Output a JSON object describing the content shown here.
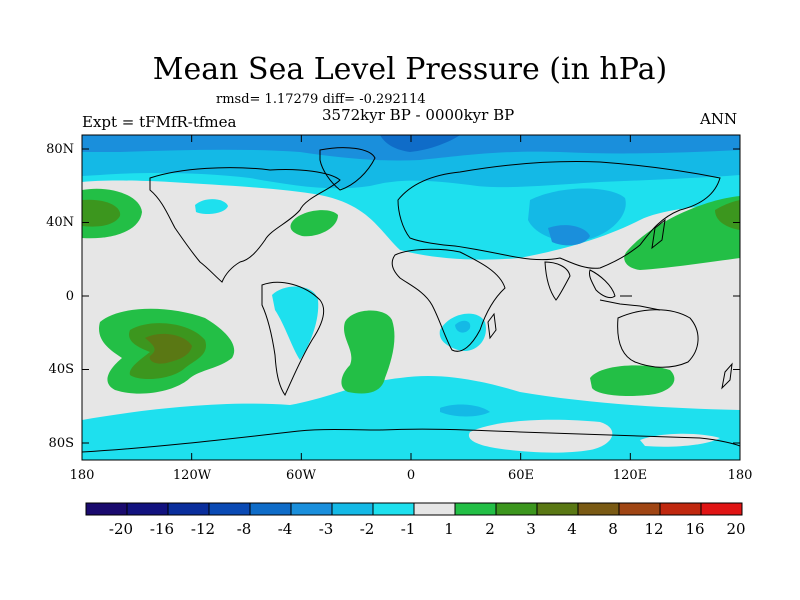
{
  "title": "Mean Sea Level Pressure (in hPa)",
  "stats_line": "rmsd= 1.17279  diff= -0.292114",
  "period": "3572kyr BP - 0000kyr BP",
  "experiment": "Expt = tFMfR-tfmea",
  "season": "ANN",
  "lat_labels": [
    "80N",
    "40N",
    "0",
    "40S",
    "80S"
  ],
  "lon_labels": [
    "180",
    "120W",
    "60W",
    "0",
    "60E",
    "120E",
    "180"
  ],
  "colorbar": {
    "levels": [
      "-20",
      "-16",
      "-12",
      "-8",
      "-4",
      "-3",
      "-2",
      "-1",
      "1",
      "2",
      "3",
      "4",
      "8",
      "12",
      "16",
      "20"
    ],
    "colors": [
      "#1a0a6e",
      "#12127f",
      "#0a2e9c",
      "#0a4ab4",
      "#0f6cc8",
      "#1a8fdc",
      "#14b9e6",
      "#1ee0ee",
      "#e6e6e6",
      "#23bf46",
      "#3c961e",
      "#5a7814",
      "#7a5a14",
      "#a04614",
      "#c0280f",
      "#e01414"
    ]
  },
  "map_colors": {
    "neutral": "#e6e6e6",
    "neg1": "#1ee0ee",
    "neg2": "#14b9e6",
    "neg3": "#1a8fdc",
    "neg4": "#0f6cc8",
    "pos1": "#23bf46",
    "pos2": "#3c961e",
    "pos3": "#5a7814",
    "coast": "#000000"
  }
}
